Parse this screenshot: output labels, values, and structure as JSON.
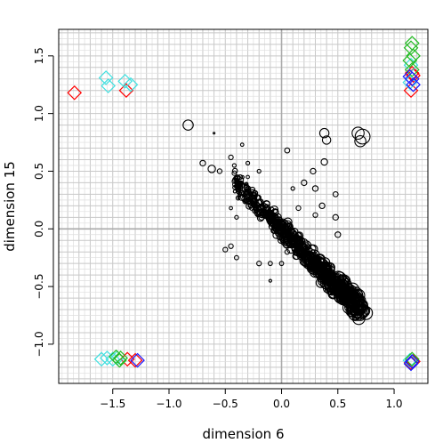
{
  "chart_data": {
    "type": "scatter",
    "xlabel": "dimension 6",
    "ylabel": "dimension 15",
    "xlim": [
      -1.98,
      1.3
    ],
    "ylim": [
      -1.34,
      1.73
    ],
    "grid": true,
    "x_ticks": [
      -1.5,
      -1.0,
      -0.5,
      0.0,
      0.5,
      1.0
    ],
    "x_tick_labels": [
      "−1.5",
      "−1.0",
      "−0.5",
      "0.0",
      "0.5",
      "1.0"
    ],
    "y_ticks": [
      -1.0,
      -0.5,
      0.0,
      0.5,
      1.0,
      1.5
    ],
    "y_tick_labels": [
      "−1.0",
      "−0.5",
      "0.0",
      "0.5",
      "1.0",
      "1.5"
    ],
    "series": [
      {
        "marker": "circle",
        "color": "#000000",
        "points": [
          {
            "x": -0.83,
            "y": 0.9,
            "s": 1.1
          },
          {
            "x": -0.6,
            "y": 0.83,
            "s": 0.2
          },
          {
            "x": -0.7,
            "y": 0.57,
            "s": 0.6
          },
          {
            "x": -0.62,
            "y": 0.52,
            "s": 0.8
          },
          {
            "x": -0.55,
            "y": 0.5,
            "s": 0.5
          },
          {
            "x": -0.45,
            "y": 0.62,
            "s": 0.5
          },
          {
            "x": -0.42,
            "y": 0.55,
            "s": 0.4
          },
          {
            "x": -0.35,
            "y": 0.73,
            "s": 0.35
          },
          {
            "x": -0.3,
            "y": 0.57,
            "s": 0.4
          },
          {
            "x": 0.05,
            "y": 0.68,
            "s": 0.55
          },
          {
            "x": 0.38,
            "y": 0.58,
            "s": 0.7
          },
          {
            "x": 0.28,
            "y": 0.5,
            "s": 0.6
          },
          {
            "x": 0.38,
            "y": 0.83,
            "s": 1.0
          },
          {
            "x": 0.4,
            "y": 0.77,
            "s": 0.9
          },
          {
            "x": 0.68,
            "y": 0.83,
            "s": 1.3
          },
          {
            "x": 0.72,
            "y": 0.8,
            "s": 1.6
          },
          {
            "x": 0.7,
            "y": 0.76,
            "s": 1.2
          },
          {
            "x": 0.2,
            "y": 0.4,
            "s": 0.6
          },
          {
            "x": 0.3,
            "y": 0.35,
            "s": 0.6
          },
          {
            "x": 0.48,
            "y": 0.3,
            "s": 0.55
          },
          {
            "x": 0.36,
            "y": 0.2,
            "s": 0.6
          },
          {
            "x": 0.48,
            "y": 0.1,
            "s": 0.6
          },
          {
            "x": 0.5,
            "y": -0.05,
            "s": 0.6
          },
          {
            "x": -0.45,
            "y": -0.15,
            "s": 0.5
          },
          {
            "x": -0.5,
            "y": -0.18,
            "s": 0.5
          },
          {
            "x": -0.4,
            "y": -0.25,
            "s": 0.45
          },
          {
            "x": -0.2,
            "y": -0.3,
            "s": 0.5
          },
          {
            "x": -0.1,
            "y": -0.3,
            "s": 0.45
          },
          {
            "x": 0.0,
            "y": -0.3,
            "s": 0.45
          },
          {
            "x": 0.05,
            "y": -0.2,
            "s": 0.5
          },
          {
            "x": -0.4,
            "y": 0.1,
            "s": 0.4
          },
          {
            "x": -0.45,
            "y": 0.18,
            "s": 0.35
          },
          {
            "x": -0.4,
            "y": 0.4,
            "s": 0.4
          },
          {
            "x": -0.3,
            "y": 0.45,
            "s": 0.35
          },
          {
            "x": -0.2,
            "y": 0.5,
            "s": 0.4
          },
          {
            "x": 0.1,
            "y": 0.35,
            "s": 0.4
          },
          {
            "x": 0.15,
            "y": 0.18,
            "s": 0.5
          },
          {
            "x": 0.3,
            "y": 0.12,
            "s": 0.5
          },
          {
            "x": -0.1,
            "y": -0.45,
            "s": 0.3
          },
          {
            "x": 0.62,
            "y": -0.55,
            "s": 1.0
          },
          {
            "x": 0.65,
            "y": -0.58,
            "s": 1.0
          },
          {
            "x": 0.6,
            "y": -0.6,
            "s": 1.0
          },
          {
            "x": 0.7,
            "y": -0.68,
            "s": 1.2
          },
          {
            "x": 0.73,
            "y": -0.71,
            "s": 1.3
          },
          {
            "x": 0.75,
            "y": -0.73,
            "s": 1.4
          },
          {
            "x": 0.72,
            "y": -0.66,
            "s": 1.1
          }
        ],
        "cloud": {
          "count": 650,
          "x_range": [
            -0.42,
            0.72
          ],
          "line": {
            "intercept": 0.0,
            "slope": -1.0
          },
          "spread": 0.08
        }
      },
      {
        "marker": "diamond",
        "color": "#ff0000",
        "points": [
          {
            "x": -1.84,
            "y": 1.18
          },
          {
            "x": -1.38,
            "y": 1.2
          },
          {
            "x": 1.15,
            "y": 1.2
          },
          {
            "x": 1.17,
            "y": 1.33
          },
          {
            "x": 1.16,
            "y": 1.35
          },
          {
            "x": -1.37,
            "y": -1.13
          },
          {
            "x": -1.3,
            "y": -1.14
          },
          {
            "x": 1.15,
            "y": -1.16
          },
          {
            "x": 1.17,
            "y": -1.15
          }
        ]
      },
      {
        "marker": "diamond",
        "color": "#40e0e0",
        "points": [
          {
            "x": -1.56,
            "y": 1.31
          },
          {
            "x": -1.54,
            "y": 1.24
          },
          {
            "x": -1.39,
            "y": 1.28
          },
          {
            "x": -1.34,
            "y": 1.25
          },
          {
            "x": 1.15,
            "y": 1.42
          },
          {
            "x": 1.14,
            "y": 1.27
          },
          {
            "x": -1.6,
            "y": -1.13
          },
          {
            "x": -1.55,
            "y": -1.12
          },
          {
            "x": -1.5,
            "y": -1.13
          },
          {
            "x": -1.46,
            "y": -1.12
          },
          {
            "x": 1.14,
            "y": -1.14
          }
        ]
      },
      {
        "marker": "diamond",
        "color": "#22bb22",
        "points": [
          {
            "x": 1.16,
            "y": 1.61
          },
          {
            "x": 1.15,
            "y": 1.57
          },
          {
            "x": 1.17,
            "y": 1.5
          },
          {
            "x": 1.14,
            "y": 1.46
          },
          {
            "x": 1.16,
            "y": 1.38
          },
          {
            "x": -1.47,
            "y": -1.11
          },
          {
            "x": -1.44,
            "y": -1.14
          },
          {
            "x": -1.43,
            "y": -1.12
          },
          {
            "x": 1.16,
            "y": -1.13
          }
        ]
      },
      {
        "marker": "diamond",
        "color": "#1a1aff",
        "points": [
          {
            "x": 1.14,
            "y": 1.32
          },
          {
            "x": 1.16,
            "y": 1.3
          },
          {
            "x": 1.17,
            "y": 1.25
          },
          {
            "x": -1.28,
            "y": -1.14
          },
          {
            "x": 1.15,
            "y": -1.17
          },
          {
            "x": 1.16,
            "y": -1.15
          }
        ]
      }
    ]
  }
}
